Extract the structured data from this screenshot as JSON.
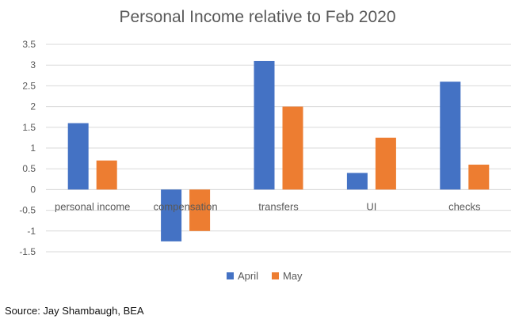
{
  "chart_data": {
    "type": "bar",
    "title": "Personal Income relative to Feb 2020",
    "categories": [
      "personal income",
      "compensation",
      "transfers",
      "UI",
      "checks"
    ],
    "series": [
      {
        "name": "April",
        "color": "#4472C4",
        "values": [
          1.6,
          -1.25,
          3.1,
          0.4,
          2.6
        ]
      },
      {
        "name": "May",
        "color": "#ED7D31",
        "values": [
          0.7,
          -1.0,
          2.0,
          1.25,
          0.6
        ]
      }
    ],
    "ylim": [
      -1.5,
      3.5
    ],
    "yticks": [
      "3.5",
      "3",
      "2.5",
      "2",
      "1.5",
      "1",
      "0.5",
      "0",
      "-0.5",
      "-1",
      "-1.5"
    ],
    "grid": true,
    "legend_position": "bottom"
  },
  "source": "Source: Jay Shambaugh, BEA",
  "colors": {
    "grid": "#d9d9d9",
    "text": "#595959",
    "title": "#595959"
  }
}
